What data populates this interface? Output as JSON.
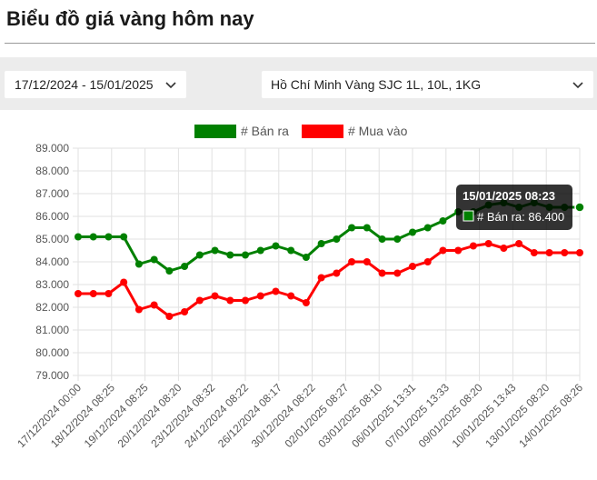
{
  "page": {
    "title": "Biểu đồ giá vàng hôm nay"
  },
  "filters": {
    "date_range": "17/12/2024 - 15/01/2025",
    "gold_type": "Hồ Chí Minh Vàng SJC 1L, 10L, 1KG"
  },
  "colors": {
    "sell": "#008000",
    "buy": "#ff0000",
    "grid": "#e2e2e2",
    "axis_text": "#555555"
  },
  "chart_data": {
    "type": "line",
    "title": "",
    "xlabel": "",
    "ylabel": "",
    "ylim": [
      79,
      89
    ],
    "yticks": [
      "79.000",
      "80.000",
      "81.000",
      "82.000",
      "83.000",
      "84.000",
      "85.000",
      "86.000",
      "87.000",
      "88.000",
      "89.000"
    ],
    "grid": true,
    "legend_position": "top-center",
    "x_tick_labels": [
      "17/12/2024 00:00",
      "18/12/2024 08:25",
      "19/12/2024 08:25",
      "20/12/2024 08:20",
      "23/12/2024 08:32",
      "24/12/2024 08:22",
      "26/12/2024 08:17",
      "30/12/2024 08:22",
      "02/01/2025 08:27",
      "03/01/2025 08:10",
      "06/01/2025 13:31",
      "07/01/2025 13:33",
      "09/01/2025 08:20",
      "10/01/2025 13:43",
      "13/01/2025 08:20",
      "14/01/2025 08:26"
    ],
    "point_count": 34,
    "series": [
      {
        "name": "# Bán ra",
        "color": "#008000",
        "values": [
          85.1,
          85.1,
          85.1,
          85.1,
          83.9,
          84.1,
          83.6,
          83.8,
          84.3,
          84.5,
          84.3,
          84.3,
          84.5,
          84.7,
          84.5,
          84.2,
          84.8,
          85.0,
          85.5,
          85.5,
          85.0,
          85.0,
          85.3,
          85.5,
          85.8,
          86.2,
          86.2,
          86.5,
          86.6,
          86.4,
          86.6,
          86.4,
          86.4,
          86.4
        ]
      },
      {
        "name": "# Mua vào",
        "color": "#ff0000",
        "values": [
          82.6,
          82.6,
          82.6,
          83.1,
          81.9,
          82.1,
          81.6,
          81.8,
          82.3,
          82.5,
          82.3,
          82.3,
          82.5,
          82.7,
          82.5,
          82.2,
          83.3,
          83.5,
          84.0,
          84.0,
          83.5,
          83.5,
          83.8,
          84.0,
          84.5,
          84.5,
          84.7,
          84.8,
          84.6,
          84.8,
          84.4,
          84.4,
          84.4,
          84.4
        ]
      }
    ],
    "tooltip": {
      "title": "15/01/2025 08:23",
      "label": "# Bán ra: 86.400",
      "series_index": 0,
      "point_index": 33
    }
  }
}
